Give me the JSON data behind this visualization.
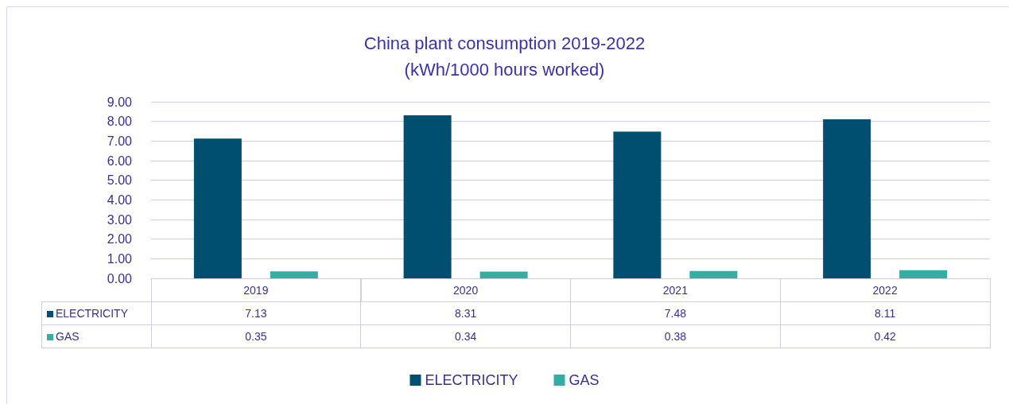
{
  "chart_data": {
    "type": "bar",
    "title": "China plant consumption 2019-2022\n(kWh/1000 hours worked)",
    "categories": [
      "2019",
      "2020",
      "2021",
      "2022"
    ],
    "series": [
      {
        "name": "ELECTRICITY",
        "color": "#004f70",
        "values": [
          7.13,
          8.31,
          7.48,
          8.11
        ]
      },
      {
        "name": "GAS",
        "color": "#35ada3",
        "values": [
          0.35,
          0.34,
          0.38,
          0.42
        ]
      }
    ],
    "ylim": [
      0,
      9
    ],
    "yticks": [
      {
        "value": 0,
        "label": "0.00"
      },
      {
        "value": 1,
        "label": "1.00"
      },
      {
        "value": 2,
        "label": "2.00"
      },
      {
        "value": 3,
        "label": "3.00"
      },
      {
        "value": 4,
        "label": "4.00"
      },
      {
        "value": 5,
        "label": "5.00"
      },
      {
        "value": 6,
        "label": "6.00"
      },
      {
        "value": 7,
        "label": "7.00"
      },
      {
        "value": 8,
        "label": "8.00"
      },
      {
        "value": 9,
        "label": "9.00"
      }
    ],
    "grid": "y",
    "legend": "bottom",
    "data_labels": true
  }
}
